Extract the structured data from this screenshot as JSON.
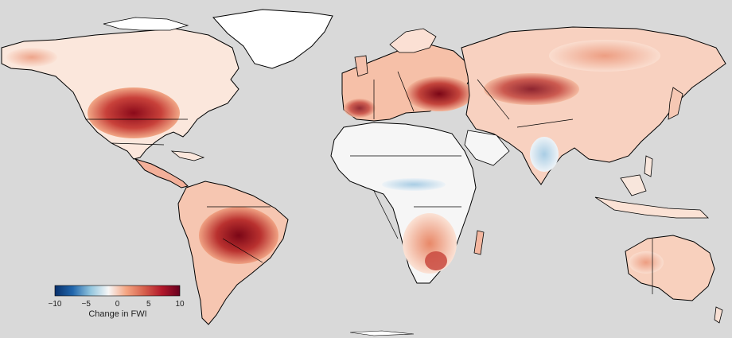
{
  "map": {
    "variable": "FWI",
    "colors": {
      "ocean": "#d9d9d9",
      "no_change": "#f7f7f7",
      "negative": "#2166ac",
      "positive": "#8b0a1a",
      "border": "#000000"
    },
    "regions_high_increase": [
      "western United States",
      "Brazil",
      "Black Sea region",
      "Mediterranean Europe",
      "southern Africa"
    ],
    "regions_decrease": [
      "India",
      "Sahel"
    ]
  },
  "colorbar": {
    "title": "Change in FWI",
    "ticks": [
      "−10",
      "−5",
      "0",
      "5",
      "10"
    ],
    "min": -10,
    "max": 10,
    "stops": [
      "#08306b",
      "#2166ac",
      "#92c5de",
      "#f7f7f7",
      "#f4a582",
      "#d6604d",
      "#b2182b",
      "#67001f"
    ]
  }
}
